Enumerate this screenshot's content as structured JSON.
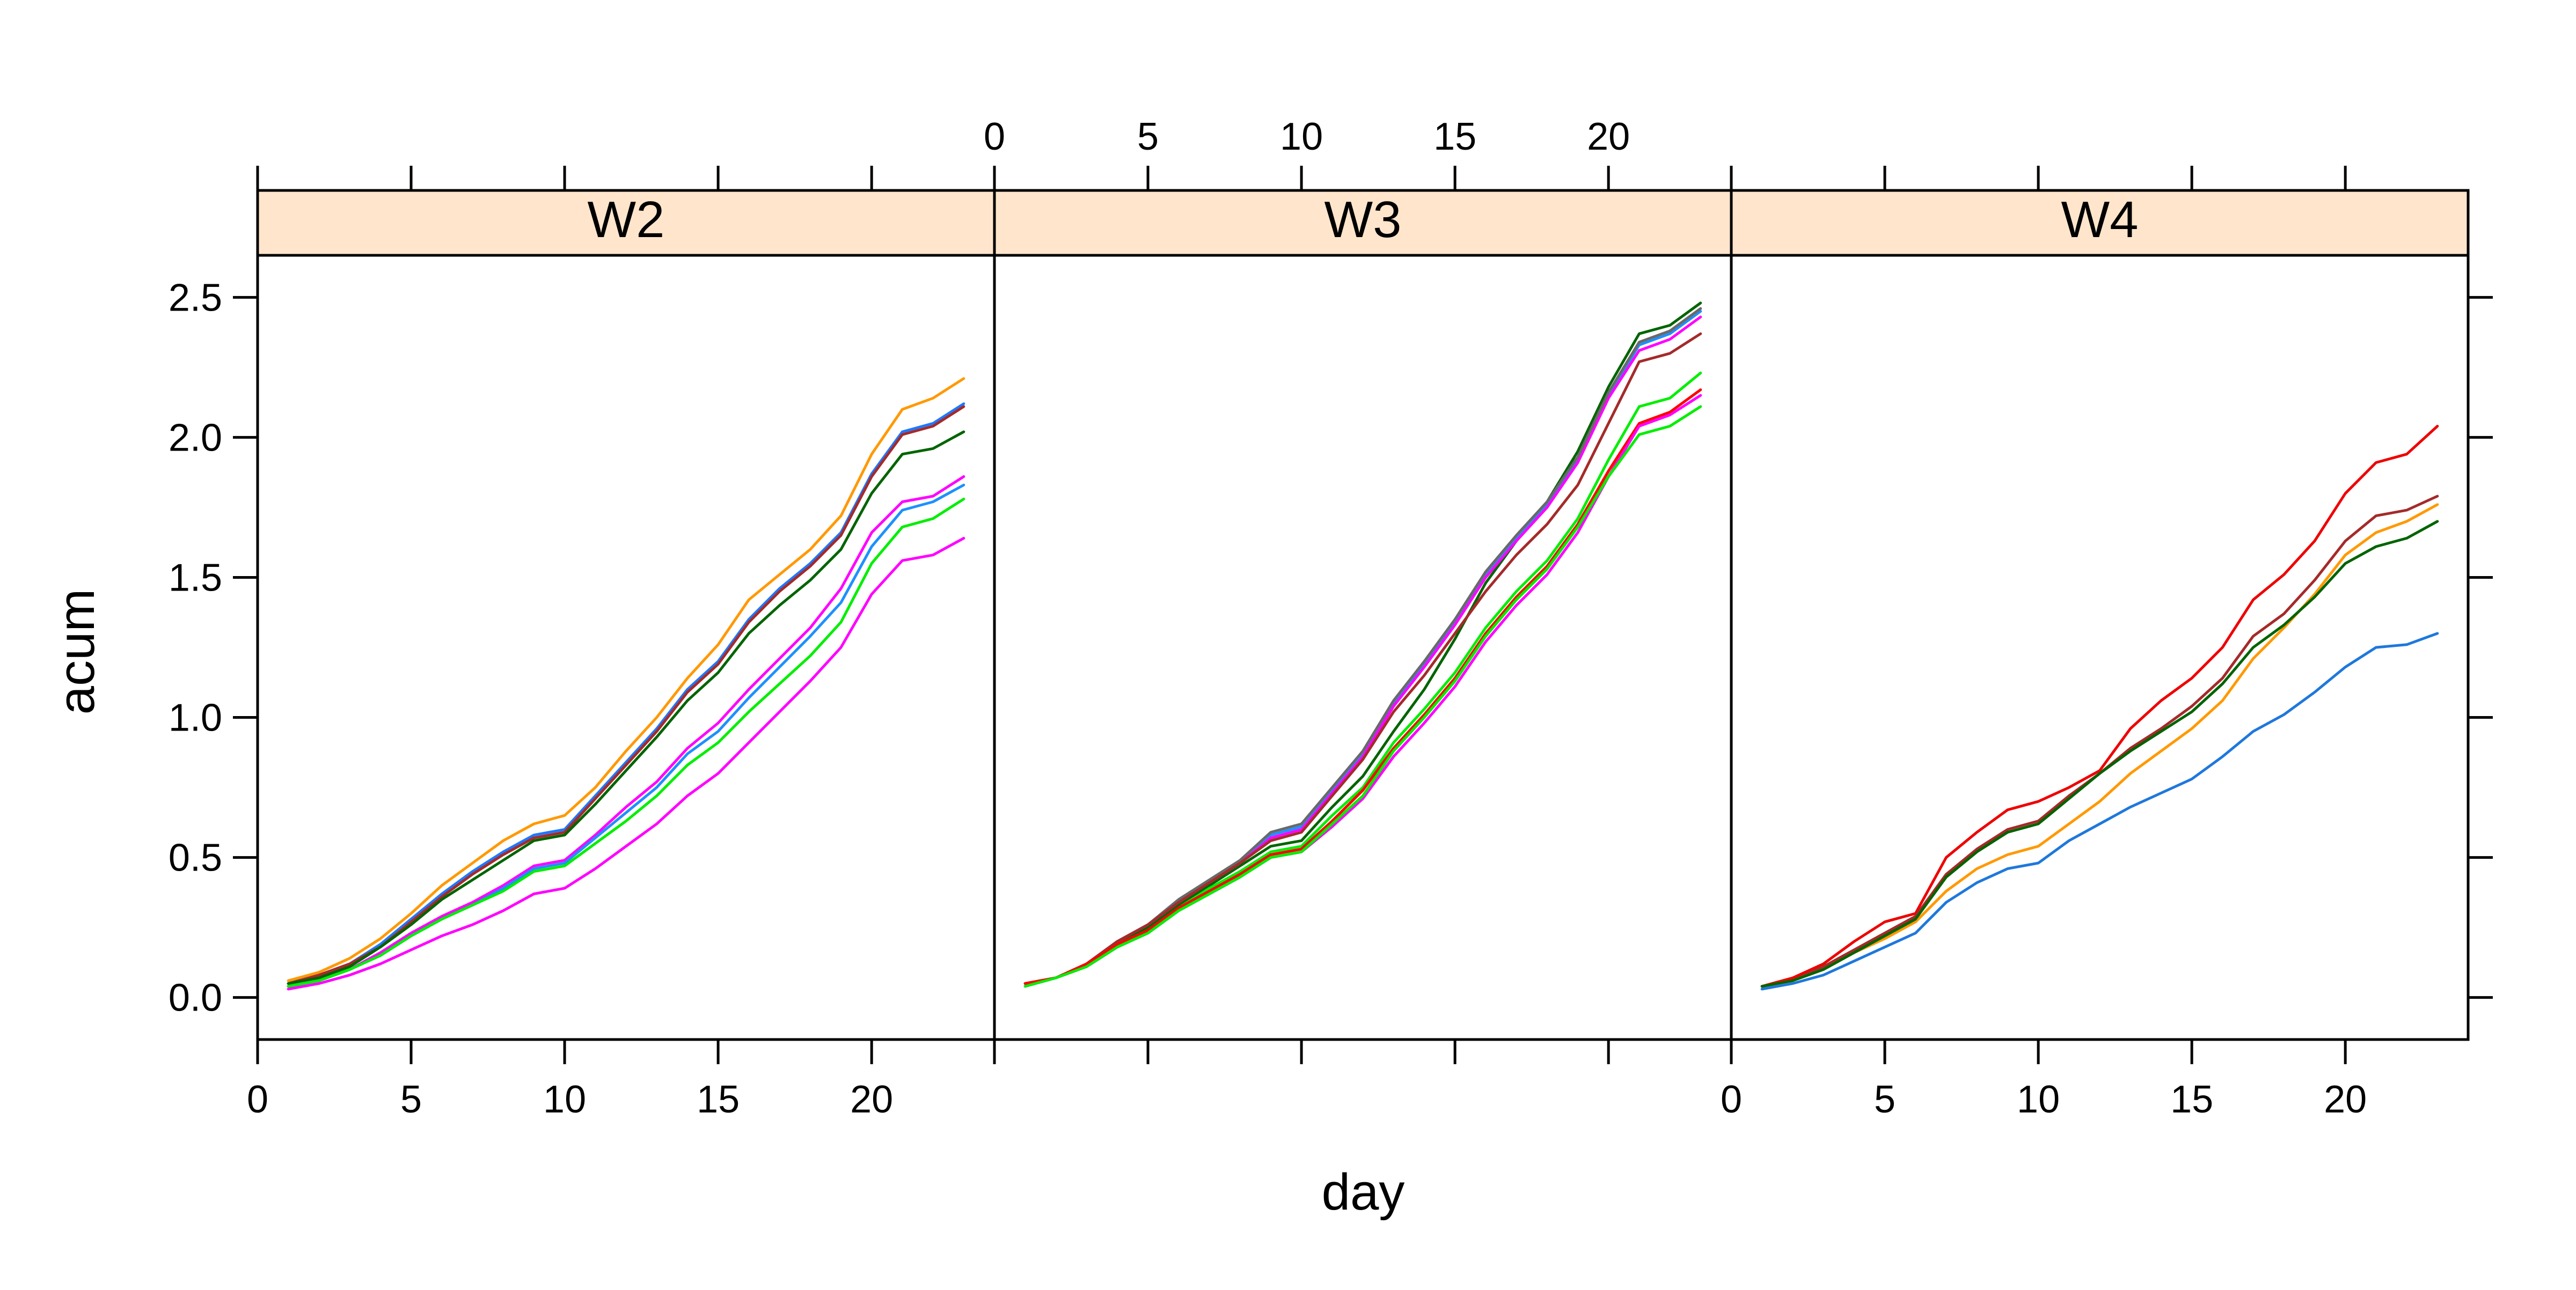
{
  "chart_data": {
    "type": "line",
    "layout": "trellis",
    "xlabel": "day",
    "ylabel": "acum",
    "xlim": [
      0,
      24
    ],
    "ylim": [
      -0.15,
      2.65
    ],
    "x_ticks": [
      0,
      5,
      10,
      15,
      20
    ],
    "y_ticks": [
      0.0,
      0.5,
      1.0,
      1.5,
      2.0,
      2.5
    ],
    "x_tick_labels": [
      "0",
      "5",
      "10",
      "15",
      "20"
    ],
    "y_tick_labels": [
      "0.0",
      "0.5",
      "1.0",
      "1.5",
      "2.0",
      "2.5"
    ],
    "strip_color": "#ffe5cc",
    "x": [
      1,
      2,
      3,
      4,
      5,
      6,
      7,
      8,
      9,
      10,
      11,
      12,
      13,
      14,
      15,
      16,
      17,
      18,
      19,
      20,
      21,
      22,
      23
    ],
    "panels": [
      {
        "name": "W2",
        "series": [
          {
            "color": "#ff9900",
            "values": [
              0.06,
              0.09,
              0.14,
              0.21,
              0.3,
              0.4,
              0.48,
              0.56,
              0.62,
              0.65,
              0.75,
              0.88,
              1.0,
              1.14,
              1.26,
              1.42,
              1.51,
              1.6,
              1.72,
              1.94,
              2.1,
              2.14,
              2.21
            ]
          },
          {
            "color": "#1e78ff",
            "values": [
              0.05,
              0.08,
              0.12,
              0.19,
              0.28,
              0.37,
              0.45,
              0.52,
              0.58,
              0.6,
              0.72,
              0.84,
              0.96,
              1.1,
              1.2,
              1.35,
              1.46,
              1.55,
              1.66,
              1.87,
              2.02,
              2.05,
              2.12
            ]
          },
          {
            "color": "#a52a2a",
            "values": [
              0.05,
              0.08,
              0.12,
              0.18,
              0.27,
              0.36,
              0.44,
              0.51,
              0.57,
              0.59,
              0.71,
              0.83,
              0.95,
              1.09,
              1.19,
              1.34,
              1.45,
              1.54,
              1.65,
              1.86,
              2.01,
              2.04,
              2.11
            ]
          },
          {
            "color": "#006400",
            "values": [
              0.05,
              0.07,
              0.11,
              0.18,
              0.26,
              0.35,
              0.42,
              0.49,
              0.56,
              0.58,
              0.69,
              0.81,
              0.93,
              1.06,
              1.16,
              1.3,
              1.4,
              1.49,
              1.6,
              1.8,
              1.94,
              1.96,
              2.02
            ]
          },
          {
            "color": "#ff00ff",
            "values": [
              0.04,
              0.06,
              0.1,
              0.16,
              0.23,
              0.29,
              0.34,
              0.4,
              0.47,
              0.49,
              0.58,
              0.68,
              0.77,
              0.89,
              0.98,
              1.1,
              1.21,
              1.32,
              1.46,
              1.66,
              1.77,
              1.79,
              1.86
            ]
          },
          {
            "color": "#1e90ff",
            "values": [
              0.04,
              0.06,
              0.1,
              0.15,
              0.22,
              0.28,
              0.33,
              0.39,
              0.46,
              0.48,
              0.57,
              0.66,
              0.75,
              0.87,
              0.95,
              1.07,
              1.18,
              1.29,
              1.41,
              1.61,
              1.74,
              1.77,
              1.83
            ]
          },
          {
            "color": "#00ee00",
            "values": [
              0.04,
              0.06,
              0.1,
              0.15,
              0.22,
              0.28,
              0.33,
              0.38,
              0.45,
              0.47,
              0.55,
              0.63,
              0.72,
              0.83,
              0.91,
              1.02,
              1.12,
              1.22,
              1.34,
              1.55,
              1.68,
              1.71,
              1.78
            ]
          },
          {
            "color": "#ff00ff",
            "values": [
              0.03,
              0.05,
              0.08,
              0.12,
              0.17,
              0.22,
              0.26,
              0.31,
              0.37,
              0.39,
              0.46,
              0.54,
              0.62,
              0.72,
              0.8,
              0.91,
              1.02,
              1.13,
              1.25,
              1.44,
              1.56,
              1.58,
              1.64
            ]
          }
        ]
      },
      {
        "name": "W3",
        "series": [
          {
            "color": "#006400",
            "values": [
              0.05,
              0.07,
              0.12,
              0.19,
              0.25,
              0.33,
              0.4,
              0.47,
              0.54,
              0.56,
              0.68,
              0.79,
              0.95,
              1.1,
              1.28,
              1.48,
              1.63,
              1.77,
              1.95,
              2.18,
              2.37,
              2.4,
              2.48
            ]
          },
          {
            "color": "#1e90ff",
            "values": [
              0.05,
              0.07,
              0.12,
              0.2,
              0.26,
              0.34,
              0.41,
              0.48,
              0.58,
              0.61,
              0.74,
              0.87,
              1.05,
              1.19,
              1.34,
              1.51,
              1.64,
              1.76,
              1.92,
              2.15,
              2.33,
              2.37,
              2.45
            ]
          },
          {
            "color": "#ff00ff",
            "values": [
              0.05,
              0.07,
              0.12,
              0.2,
              0.26,
              0.34,
              0.41,
              0.48,
              0.57,
              0.6,
              0.73,
              0.86,
              1.04,
              1.18,
              1.33,
              1.5,
              1.63,
              1.75,
              1.91,
              2.14,
              2.31,
              2.35,
              2.43
            ]
          },
          {
            "color": "#696969",
            "values": [
              0.05,
              0.07,
              0.12,
              0.2,
              0.26,
              0.35,
              0.42,
              0.49,
              0.59,
              0.62,
              0.75,
              0.88,
              1.06,
              1.2,
              1.35,
              1.52,
              1.65,
              1.77,
              1.93,
              2.16,
              2.34,
              2.38,
              2.46
            ]
          },
          {
            "color": "#a52a2a",
            "values": [
              0.05,
              0.07,
              0.12,
              0.2,
              0.26,
              0.34,
              0.41,
              0.48,
              0.56,
              0.59,
              0.72,
              0.85,
              1.02,
              1.15,
              1.3,
              1.45,
              1.58,
              1.69,
              1.83,
              2.05,
              2.27,
              2.3,
              2.37
            ]
          },
          {
            "color": "#00ee00",
            "values": [
              0.05,
              0.07,
              0.12,
              0.19,
              0.24,
              0.32,
              0.39,
              0.45,
              0.52,
              0.54,
              0.65,
              0.75,
              0.91,
              1.03,
              1.16,
              1.32,
              1.45,
              1.56,
              1.71,
              1.92,
              2.11,
              2.14,
              2.23
            ]
          },
          {
            "color": "#ff0000",
            "values": [
              0.05,
              0.07,
              0.12,
              0.19,
              0.24,
              0.32,
              0.38,
              0.44,
              0.51,
              0.53,
              0.63,
              0.74,
              0.89,
              1.01,
              1.14,
              1.3,
              1.43,
              1.54,
              1.69,
              1.88,
              2.05,
              2.09,
              2.17
            ]
          },
          {
            "color": "#ff00ff",
            "values": [
              0.04,
              0.07,
              0.11,
              0.18,
              0.23,
              0.31,
              0.37,
              0.43,
              0.5,
              0.52,
              0.61,
              0.71,
              0.86,
              0.98,
              1.11,
              1.27,
              1.4,
              1.51,
              1.66,
              1.86,
              2.04,
              2.08,
              2.15
            ]
          },
          {
            "color": "#00ee00",
            "values": [
              0.04,
              0.07,
              0.11,
              0.18,
              0.23,
              0.31,
              0.37,
              0.43,
              0.5,
              0.52,
              0.62,
              0.72,
              0.88,
              1.0,
              1.13,
              1.29,
              1.42,
              1.53,
              1.68,
              1.86,
              2.01,
              2.04,
              2.11
            ]
          }
        ]
      },
      {
        "name": "W4",
        "series": [
          {
            "color": "#ee0000",
            "values": [
              0.04,
              0.07,
              0.12,
              0.2,
              0.27,
              0.3,
              0.5,
              0.59,
              0.67,
              0.7,
              0.75,
              0.81,
              0.96,
              1.06,
              1.14,
              1.25,
              1.42,
              1.51,
              1.63,
              1.8,
              1.91,
              1.94,
              2.04
            ]
          },
          {
            "color": "#a52a2a",
            "values": [
              0.04,
              0.06,
              0.11,
              0.17,
              0.23,
              0.29,
              0.44,
              0.53,
              0.6,
              0.63,
              0.72,
              0.8,
              0.89,
              0.96,
              1.04,
              1.14,
              1.29,
              1.37,
              1.49,
              1.63,
              1.72,
              1.74,
              1.79
            ]
          },
          {
            "color": "#ff9900",
            "values": [
              0.04,
              0.06,
              0.1,
              0.16,
              0.21,
              0.27,
              0.38,
              0.46,
              0.51,
              0.54,
              0.62,
              0.7,
              0.8,
              0.88,
              0.96,
              1.06,
              1.21,
              1.32,
              1.44,
              1.58,
              1.66,
              1.7,
              1.76
            ]
          },
          {
            "color": "#006400",
            "values": [
              0.04,
              0.06,
              0.1,
              0.16,
              0.22,
              0.28,
              0.43,
              0.52,
              0.59,
              0.62,
              0.71,
              0.8,
              0.88,
              0.95,
              1.02,
              1.12,
              1.25,
              1.33,
              1.43,
              1.55,
              1.61,
              1.64,
              1.7
            ]
          },
          {
            "color": "#1e78dc",
            "values": [
              0.03,
              0.05,
              0.08,
              0.13,
              0.18,
              0.23,
              0.34,
              0.41,
              0.46,
              0.48,
              0.56,
              0.62,
              0.68,
              0.73,
              0.78,
              0.86,
              0.95,
              1.01,
              1.09,
              1.18,
              1.25,
              1.26,
              1.3
            ]
          }
        ]
      }
    ]
  }
}
